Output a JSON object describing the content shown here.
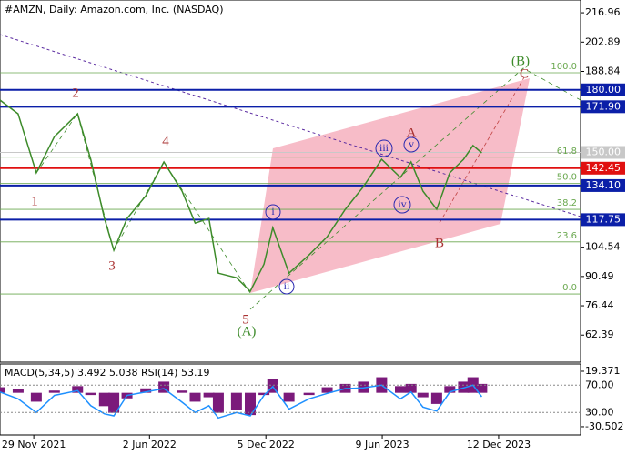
{
  "chart_data": {
    "type": "line",
    "title": "#AMZN, Daily:  Amazon.com, Inc. (NASDAQ)",
    "x": [
      "2021-10-06",
      "2021-11-04",
      "2021-12-03",
      "2022-01-01",
      "2022-02-07",
      "2022-02-28",
      "2022-03-22",
      "2022-04-06",
      "2022-04-27",
      "2022-05-27",
      "2022-06-25",
      "2022-07-24",
      "2022-08-14",
      "2022-09-05",
      "2022-09-20",
      "2022-10-19",
      "2022-11-10",
      "2022-12-02",
      "2022-12-16",
      "2023-01-11",
      "2023-02-12",
      "2023-03-13",
      "2023-04-11",
      "2023-05-10",
      "2023-06-08",
      "2023-07-08",
      "2023-07-25",
      "2023-08-13",
      "2023-09-04",
      "2023-09-25",
      "2023-10-17",
      "2023-11-01",
      "2023-11-15"
    ],
    "values": [
      175.1,
      168.5,
      140.2,
      157.6,
      168.5,
      146.7,
      118.3,
      103.1,
      118.3,
      129.2,
      145.4,
      131.4,
      116.1,
      118.3,
      92.1,
      89.9,
      83.4,
      96.4,
      113.9,
      92.1,
      100.8,
      109.6,
      122.7,
      133.6,
      146.7,
      138.0,
      145.4,
      131.4,
      122.7,
      140.2,
      146.7,
      153.3,
      149.8
    ],
    "color": "#3d8b2a",
    "xlim": [
      "2021-10-06",
      "2024-04-21"
    ],
    "xticks": [
      {
        "value": "2021-11-29",
        "label": "29 Nov 2021"
      },
      {
        "value": "2022-06-02",
        "label": "2 Jun 2022"
      },
      {
        "value": "2022-12-05",
        "label": "5 Dec 2022"
      },
      {
        "value": "2023-06-09",
        "label": "9 Jun 2023"
      },
      {
        "value": "2023-12-12",
        "label": "12 Dec 2023"
      }
    ],
    "ylim": [
      49.4,
      223.1
    ],
    "yticks": [
      216.96,
      202.89,
      188.84,
      104.54,
      90.49,
      76.44,
      62.39
    ],
    "levels": [
      {
        "value": 180,
        "label": "180.00",
        "color": "#0b1fa8"
      },
      {
        "value": 171.9,
        "label": "171.90",
        "color": "#0b1fa8"
      },
      {
        "value": 150,
        "label": "150.00",
        "color": "#c8c8c8"
      },
      {
        "value": 142.45,
        "color": "#e01010"
      },
      {
        "value": 134.1,
        "label": "134.10",
        "color": "#0b1fa8"
      },
      {
        "value": 117.75,
        "color": "#0b1fa8"
      }
    ],
    "fib": {
      "color": "#6aa84f",
      "lines": [
        {
          "label": "100.0",
          "price": 188.2
        },
        {
          "label": "61.8",
          "price": 147.7
        },
        {
          "label": "50.0",
          "price": 135.2
        },
        {
          "label": "38.2",
          "price": 122.7
        },
        {
          "label": "23.6",
          "price": 107.1
        },
        {
          "label": "0.0",
          "price": 82.1
        }
      ]
    },
    "annotations": [
      "1",
      "2",
      "3",
      "4",
      "5",
      "(A)",
      "i",
      "ii",
      "iii",
      "iv",
      "v",
      "A",
      "B",
      "(B)",
      "C"
    ],
    "indicator": {
      "title": "MACD(5,34,5) 3.492 5.038 RSI(14) 53.19",
      "macd": {
        "color": "#7b1a7b",
        "ylim": [
          -37.9,
          25.9
        ],
        "yticks": [
          19.371,
          -30.502
        ],
        "values": [
          5,
          3,
          -8,
          2,
          6,
          -2,
          -12,
          -18,
          -5,
          4,
          10,
          2,
          -8,
          -4,
          -18,
          -15,
          -20,
          -2,
          12,
          -8,
          -2,
          5,
          8,
          10,
          14,
          6,
          8,
          -4,
          -10,
          6,
          10,
          14,
          8
        ]
      },
      "rsi": {
        "color": "#1e90ff",
        "ylim": [
          -3,
          101
        ],
        "yticks": [
          {
            "value": 70,
            "label": "70.00"
          },
          {
            "value": 30,
            "label": "30.00"
          }
        ],
        "values": [
          60,
          50,
          30,
          55,
          62,
          40,
          28,
          25,
          55,
          60,
          65,
          45,
          30,
          40,
          22,
          30,
          25,
          55,
          68,
          35,
          50,
          58,
          65,
          66,
          70,
          50,
          60,
          38,
          32,
          60,
          66,
          70,
          53
        ]
      }
    }
  }
}
